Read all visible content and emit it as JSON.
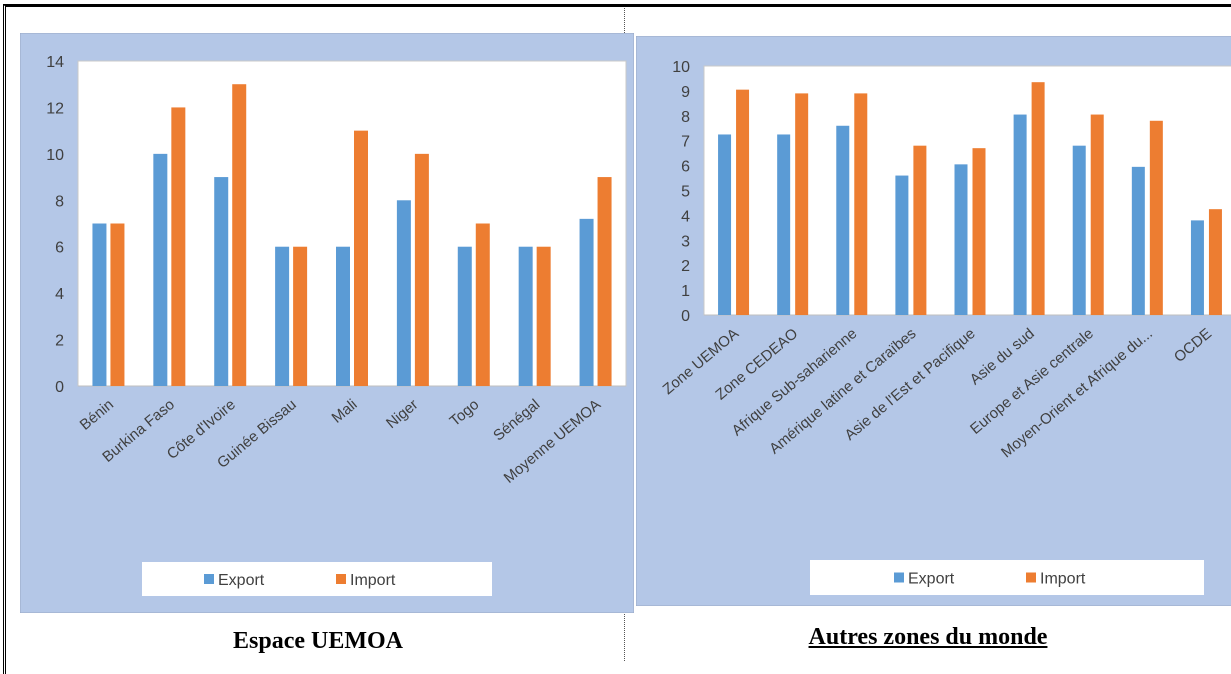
{
  "colors": {
    "export": "#5B9BD5",
    "import": "#ED7D31",
    "panel_bg": "#B4C7E7",
    "plot_bg": "#FFFFFF"
  },
  "captions": {
    "left": "Espace UEMOA",
    "right": "Autres zones du monde"
  },
  "chart_data": [
    {
      "type": "bar",
      "categories": [
        "Bénin",
        "Burkina Faso",
        "Côte d'Ivoire",
        "Guinée Bissau",
        "Mali",
        "Niger",
        "Togo",
        "Sénégal",
        "Moyenne UEMOA"
      ],
      "series": [
        {
          "name": "Export",
          "values": [
            7,
            10,
            9,
            6,
            6,
            8,
            6,
            6,
            7.2
          ]
        },
        {
          "name": "Import",
          "values": [
            7,
            12,
            13,
            6,
            11,
            10,
            7,
            6,
            9
          ]
        }
      ],
      "ylim": [
        0,
        14
      ],
      "yticks": [
        "0",
        "2",
        "4",
        "6",
        "8",
        "10",
        "12",
        "14"
      ],
      "grid": false,
      "legend": "bottom"
    },
    {
      "type": "bar",
      "categories": [
        "Zone UEMOA",
        "Zone CEDEAO",
        "Afrique Sub-saharienne",
        "Amérique latine et Caraïbes",
        "Asie de l'Est et Pacifique",
        "Asie du sud",
        "Europe et Asie centrale",
        "Moyen-Orient et Afrique du...",
        "OCDE"
      ],
      "series": [
        {
          "name": "Export",
          "values": [
            7.25,
            7.25,
            7.6,
            5.6,
            6.05,
            8.05,
            6.8,
            5.95,
            3.8
          ]
        },
        {
          "name": "Import",
          "values": [
            9.05,
            8.9,
            8.9,
            6.8,
            6.7,
            9.35,
            8.05,
            7.8,
            4.25
          ]
        }
      ],
      "ylim": [
        0,
        10
      ],
      "yticks": [
        "0",
        "1",
        "2",
        "3",
        "4",
        "5",
        "6",
        "7",
        "8",
        "9",
        "10"
      ],
      "grid": false,
      "legend": "bottom"
    }
  ]
}
